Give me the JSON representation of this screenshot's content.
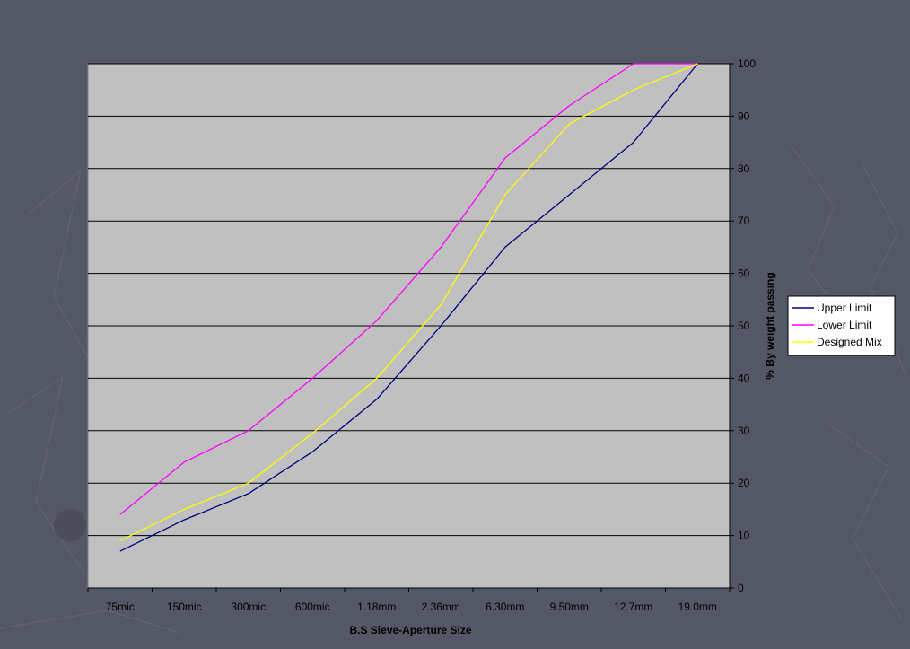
{
  "colors": {
    "background": "#545766",
    "plot_area": "#c0c0c0",
    "gridline": "#000000"
  },
  "chart_data": {
    "type": "line",
    "title": "",
    "xlabel": "B.S Sieve-Aperture Size",
    "ylabel": "% By weight passing",
    "categories": [
      "75mic",
      "150mic",
      "300mic",
      "600mic",
      "1.18mm",
      "2.36mm",
      "6.30mm",
      "9.50mm",
      "12.7mm",
      "19.0mm"
    ],
    "ylim": [
      0,
      100
    ],
    "y_ticks": [
      0,
      10,
      20,
      30,
      40,
      50,
      60,
      70,
      80,
      90,
      100
    ],
    "y_axis_side": "right",
    "grid": true,
    "legend_position": "right",
    "series": [
      {
        "name": "Upper Limit",
        "color": "#000080",
        "values": [
          7,
          13,
          18,
          26,
          36,
          50,
          65,
          75,
          85,
          100
        ]
      },
      {
        "name": "Lower Limit",
        "color": "#ff00ff",
        "values": [
          14,
          24,
          30,
          40,
          51,
          65,
          82,
          92,
          100,
          100
        ]
      },
      {
        "name": "Designed Mix",
        "color": "#ffff00",
        "values": [
          9,
          15,
          20,
          29.5,
          40,
          54,
          75,
          88.5,
          95,
          100
        ]
      }
    ]
  }
}
